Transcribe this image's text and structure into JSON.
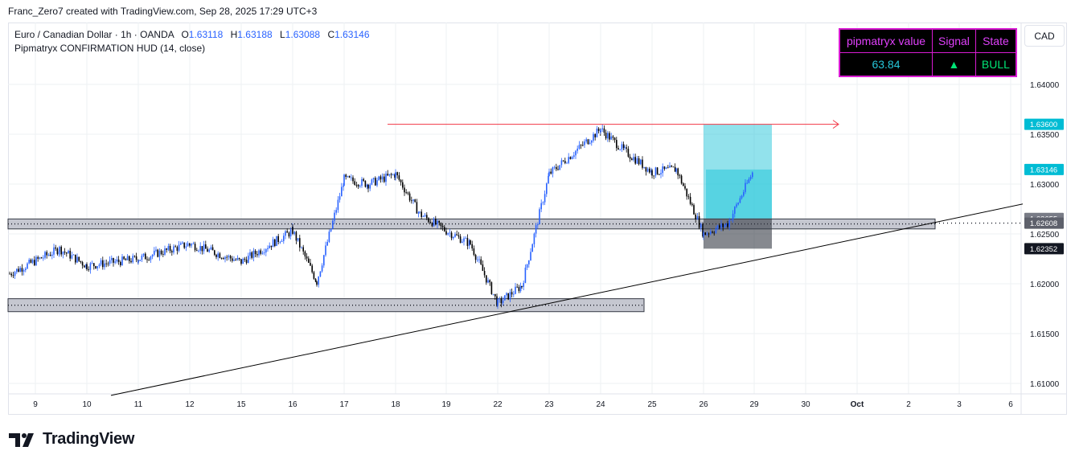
{
  "header": {
    "text": "Franc_Zero7 created with TradingView.com, Sep 28, 2025 17:29 UTC+3"
  },
  "legend": {
    "symbol": "Euro / Canadian Dollar · 1h · OANDA",
    "open_label": "O",
    "open": "1.63118",
    "high_label": "H",
    "high": "1.63188",
    "low_label": "L",
    "low": "1.63088",
    "close_label": "C",
    "close": "1.63146",
    "indicator": "Pipmatryx CONFIRMATION HUD (14, close)"
  },
  "currency_button": "CAD",
  "hud": {
    "headers": [
      "pipmatryx value",
      "Signal",
      "State"
    ],
    "values": [
      "63.84",
      "▲",
      "BULL"
    ]
  },
  "branding": {
    "logo_text": "TradingView"
  },
  "colors": {
    "up": "#2962ff",
    "down": "#000000",
    "zone": "#9598a1",
    "target": "#26c6da",
    "stop": "#363a45",
    "hud_border": "#d81bd2"
  },
  "chart_data": {
    "type": "candlestick",
    "title": "",
    "x_tick_labels": [
      "9",
      "10",
      "11",
      "12",
      "15",
      "16",
      "17",
      "18",
      "19",
      "22",
      "23",
      "24",
      "25",
      "26",
      "29",
      "30",
      "Oct",
      "2",
      "3",
      "6"
    ],
    "y_tick_labels": [
      "1.64000",
      "1.63500",
      "1.63000",
      "1.62500",
      "1.62000",
      "1.61500",
      "1.61000"
    ],
    "ylim": [
      1.6088,
      1.6428
    ],
    "price_key_points": [
      {
        "x": "9",
        "price": 1.621
      },
      {
        "x": "9",
        "price": 1.6235
      },
      {
        "x": "10",
        "price": 1.6218
      },
      {
        "x": "11",
        "price": 1.6225
      },
      {
        "x": "12",
        "price": 1.624
      },
      {
        "x": "15",
        "price": 1.6222
      },
      {
        "x": "16",
        "price": 1.6253
      },
      {
        "x": "16",
        "price": 1.6202
      },
      {
        "x": "17",
        "price": 1.6305
      },
      {
        "x": "17",
        "price": 1.63
      },
      {
        "x": "18",
        "price": 1.631
      },
      {
        "x": "18",
        "price": 1.627
      },
      {
        "x": "19",
        "price": 1.6253
      },
      {
        "x": "19",
        "price": 1.624
      },
      {
        "x": "22",
        "price": 1.618
      },
      {
        "x": "22",
        "price": 1.6198
      },
      {
        "x": "23",
        "price": 1.631
      },
      {
        "x": "24",
        "price": 1.6355
      },
      {
        "x": "24",
        "price": 1.6333
      },
      {
        "x": "25",
        "price": 1.6312
      },
      {
        "x": "25",
        "price": 1.6315
      },
      {
        "x": "26",
        "price": 1.625
      },
      {
        "x": "26",
        "price": 1.626
      },
      {
        "x": "29",
        "price": 1.6315
      }
    ],
    "ohlc_last": {
      "open": 1.63118,
      "high": 1.63188,
      "low": 1.63088,
      "close": 1.63146
    },
    "price_labels": [
      {
        "value": "1.63600",
        "kind": "target"
      },
      {
        "value": "1.63146",
        "kind": "last"
      },
      {
        "value": "1.62655",
        "kind": "entry"
      },
      {
        "value": "1.62608",
        "kind": "level"
      },
      {
        "value": "1.62352",
        "kind": "stop"
      }
    ],
    "zones": [
      {
        "from_x": "8",
        "to_x": "2",
        "low": 1.6255,
        "high": 1.6265
      },
      {
        "from_x": "8",
        "to_x": "24",
        "low": 1.6172,
        "high": 1.6185
      }
    ],
    "horizontal_ray": {
      "from_x": "17",
      "price": 1.636
    },
    "dotted_level": 1.62608,
    "trendlines": [
      {
        "from": {
          "x": "10",
          "price": 1.6088
        },
        "to": {
          "x": "6",
          "price": 1.628
        }
      }
    ],
    "position": {
      "type": "long",
      "from_x": "26",
      "to_x": "29",
      "entry": 1.62655,
      "target": 1.636,
      "stop": 1.62352
    },
    "grid": true,
    "legend_position": "top-left"
  }
}
